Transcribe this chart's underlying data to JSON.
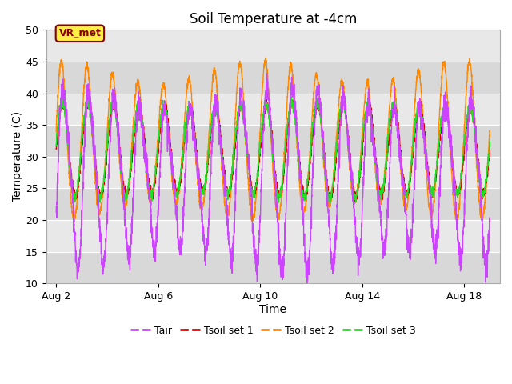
{
  "title": "Soil Temperature at -4cm",
  "xlabel": "Time",
  "ylabel": "Temperature (C)",
  "ylim": [
    10,
    50
  ],
  "xlim_days": [
    1.6,
    19.4
  ],
  "xticks_days": [
    2,
    6,
    10,
    14,
    18
  ],
  "xtick_labels": [
    "Aug 2",
    "Aug 6",
    "Aug 10",
    "Aug 14",
    "Aug 18"
  ],
  "yticks": [
    10,
    15,
    20,
    25,
    30,
    35,
    40,
    45,
    50
  ],
  "bg_color": "#e8e8e8",
  "plot_bg_color": "#e8e8e8",
  "colors": {
    "Tair": "#CC44FF",
    "Tsoil1": "#DD0000",
    "Tsoil2": "#FF8800",
    "Tsoil3": "#22DD22"
  },
  "legend_labels": [
    "Tair",
    "Tsoil set 1",
    "Tsoil set 2",
    "Tsoil set 3"
  ],
  "annotation_text": "VR_met",
  "annotation_color": "#8B0000",
  "annotation_bg": "#FFEE44",
  "seed": 42
}
